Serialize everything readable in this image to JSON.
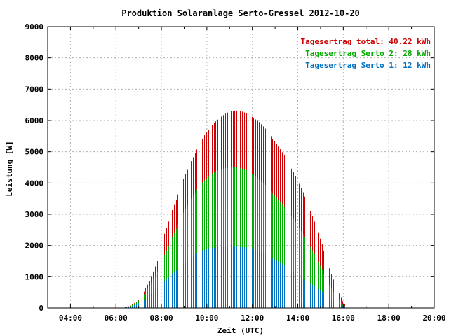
{
  "chart_data": {
    "type": "bar",
    "title": "Produktion Solaranlage Serto-Gressel 2012-10-20",
    "xlabel": "Zeit (UTC)",
    "ylabel": "Leistung [W]",
    "xlim": [
      3.0,
      20.0
    ],
    "ylim": [
      0,
      9000
    ],
    "x_ticks": [
      "04:00",
      "06:00",
      "08:00",
      "10:00",
      "12:00",
      "14:00",
      "16:00",
      "18:00",
      "20:00"
    ],
    "y_ticks": [
      "0",
      "1000",
      "2000",
      "3000",
      "4000",
      "5000",
      "6000",
      "7000",
      "8000",
      "9000"
    ],
    "grid": true,
    "legend_position": "top-right",
    "legend": [
      {
        "label": "Tagesertrag total:",
        "value": "40.22 kWh",
        "color": "#cc0000"
      },
      {
        "label": "Tagesertrag Serto 2:",
        "value": "28 kWh",
        "color": "#00aa00"
      },
      {
        "label": "Tagesertrag Serto 1:",
        "value": "12 kWh",
        "color": "#0070c0"
      }
    ],
    "series": [
      {
        "color": "#cc0000",
        "points": [
          [
            6.3,
            20
          ],
          [
            6.6,
            60
          ],
          [
            6.9,
            200
          ],
          [
            7.2,
            500
          ],
          [
            7.5,
            900
          ],
          [
            7.8,
            1500
          ],
          [
            8.1,
            2300
          ],
          [
            8.4,
            3000
          ],
          [
            8.7,
            3600
          ],
          [
            9.0,
            4200
          ],
          [
            9.3,
            4700
          ],
          [
            9.6,
            5150
          ],
          [
            9.9,
            5550
          ],
          [
            10.2,
            5850
          ],
          [
            10.5,
            6050
          ],
          [
            10.8,
            6220
          ],
          [
            11.0,
            6300
          ],
          [
            11.25,
            6320
          ],
          [
            11.5,
            6300
          ],
          [
            11.75,
            6220
          ],
          [
            12.0,
            6100
          ],
          [
            12.3,
            5950
          ],
          [
            12.6,
            5700
          ],
          [
            12.9,
            5400
          ],
          [
            13.2,
            5100
          ],
          [
            13.5,
            4750
          ],
          [
            13.8,
            4350
          ],
          [
            14.1,
            3900
          ],
          [
            14.4,
            3400
          ],
          [
            14.7,
            2800
          ],
          [
            15.0,
            2150
          ],
          [
            15.3,
            1450
          ],
          [
            15.6,
            800
          ],
          [
            15.9,
            300
          ],
          [
            16.1,
            50
          ]
        ]
      },
      {
        "color": "#00aa00",
        "points": [
          [
            6.3,
            15
          ],
          [
            6.6,
            50
          ],
          [
            6.9,
            180
          ],
          [
            7.2,
            420
          ],
          [
            7.5,
            750
          ],
          [
            7.8,
            1150
          ],
          [
            8.1,
            1650
          ],
          [
            8.4,
            2150
          ],
          [
            8.7,
            2650
          ],
          [
            9.0,
            3100
          ],
          [
            9.3,
            3500
          ],
          [
            9.6,
            3850
          ],
          [
            9.9,
            4100
          ],
          [
            10.2,
            4300
          ],
          [
            10.5,
            4420
          ],
          [
            10.8,
            4480
          ],
          [
            11.0,
            4500
          ],
          [
            11.25,
            4500
          ],
          [
            11.5,
            4470
          ],
          [
            11.75,
            4400
          ],
          [
            12.0,
            4280
          ],
          [
            12.3,
            4100
          ],
          [
            12.6,
            3900
          ],
          [
            12.9,
            3650
          ],
          [
            13.2,
            3400
          ],
          [
            13.5,
            3150
          ],
          [
            13.8,
            2850
          ],
          [
            14.1,
            2500
          ],
          [
            14.4,
            2150
          ],
          [
            14.7,
            1750
          ],
          [
            15.0,
            1300
          ],
          [
            15.3,
            850
          ],
          [
            15.6,
            450
          ],
          [
            15.9,
            150
          ],
          [
            16.1,
            30
          ]
        ]
      },
      {
        "color": "#0070c0",
        "points": [
          [
            6.3,
            10
          ],
          [
            6.6,
            30
          ],
          [
            6.9,
            120
          ],
          [
            7.2,
            260
          ],
          [
            7.5,
            430
          ],
          [
            7.8,
            620
          ],
          [
            8.1,
            820
          ],
          [
            8.4,
            1050
          ],
          [
            8.7,
            1250
          ],
          [
            9.0,
            1450
          ],
          [
            9.3,
            1620
          ],
          [
            9.6,
            1760
          ],
          [
            9.9,
            1860
          ],
          [
            10.2,
            1920
          ],
          [
            10.5,
            1950
          ],
          [
            10.8,
            1960
          ],
          [
            11.0,
            1960
          ],
          [
            11.25,
            1960
          ],
          [
            11.5,
            1950
          ],
          [
            11.75,
            1930
          ],
          [
            12.0,
            1880
          ],
          [
            12.3,
            1800
          ],
          [
            12.6,
            1700
          ],
          [
            12.9,
            1580
          ],
          [
            13.2,
            1450
          ],
          [
            13.5,
            1300
          ],
          [
            13.8,
            1150
          ],
          [
            14.1,
            1000
          ],
          [
            14.4,
            850
          ],
          [
            14.7,
            700
          ],
          [
            15.0,
            540
          ],
          [
            15.3,
            380
          ],
          [
            15.6,
            220
          ],
          [
            15.9,
            90
          ],
          [
            16.1,
            20
          ]
        ]
      }
    ]
  }
}
